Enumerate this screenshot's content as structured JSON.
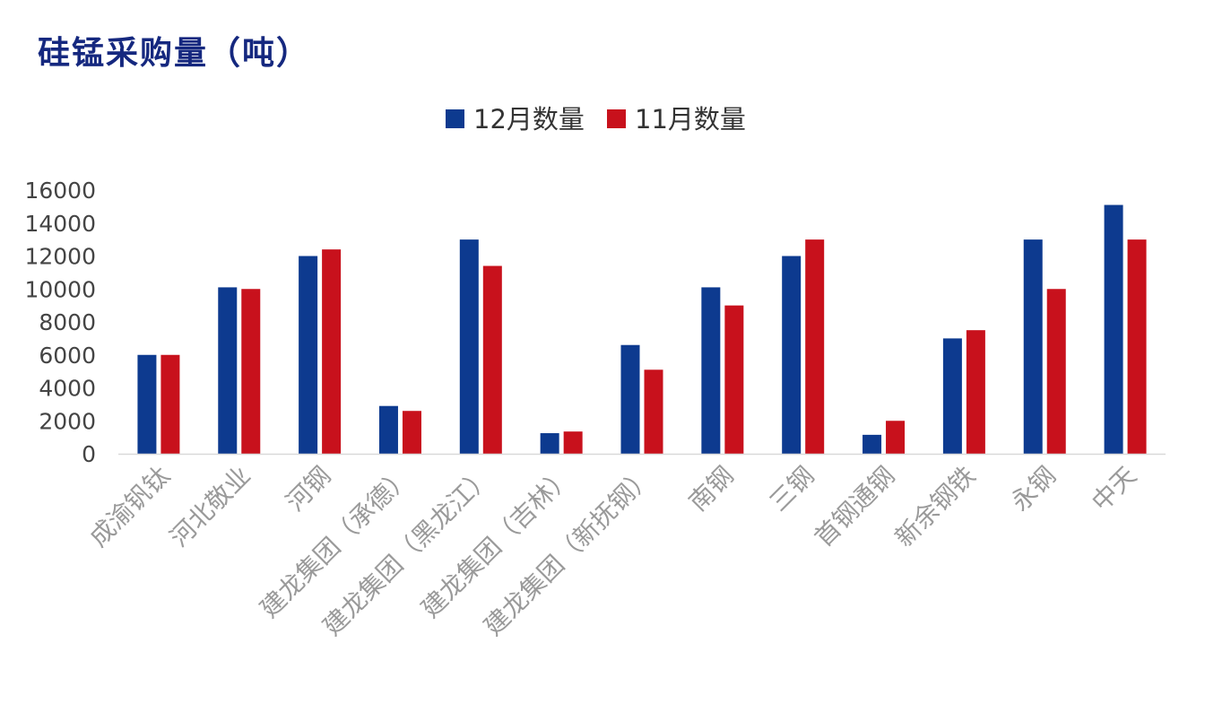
{
  "title": "硅锰采购量（吨）",
  "colors": {
    "dec": "#0d3a8f",
    "nov": "#c8111c",
    "title": "#15287f",
    "axis_text": "#444444",
    "category_text": "#9a9a9a",
    "baseline": "#d9d9d9"
  },
  "chart_data": {
    "type": "bar",
    "categories": [
      "成渝钒钛",
      "河北敬业",
      "河钢",
      "建龙集团（承德）",
      "建龙集团（黑龙江）",
      "建龙集团（吉林）",
      "建龙集团（新抚钢）",
      "南钢",
      "三钢",
      "首钢通钢",
      "新余钢铁",
      "永钢",
      "中天"
    ],
    "series": [
      {
        "name": "12月数量",
        "color": "#0d3a8f",
        "values": [
          6000,
          10100,
          12000,
          2900,
          13000,
          1250,
          6600,
          10100,
          12000,
          1150,
          7000,
          13000,
          15100
        ]
      },
      {
        "name": "11月数量",
        "color": "#c8111c",
        "values": [
          6000,
          10000,
          12400,
          2600,
          11400,
          1350,
          5100,
          9000,
          13000,
          2000,
          7500,
          10000,
          13000
        ]
      }
    ],
    "ylim": [
      0,
      16000
    ],
    "yticks": [
      0,
      2000,
      4000,
      6000,
      8000,
      10000,
      12000,
      14000,
      16000
    ],
    "grid": false,
    "legend_position": "top-center"
  }
}
